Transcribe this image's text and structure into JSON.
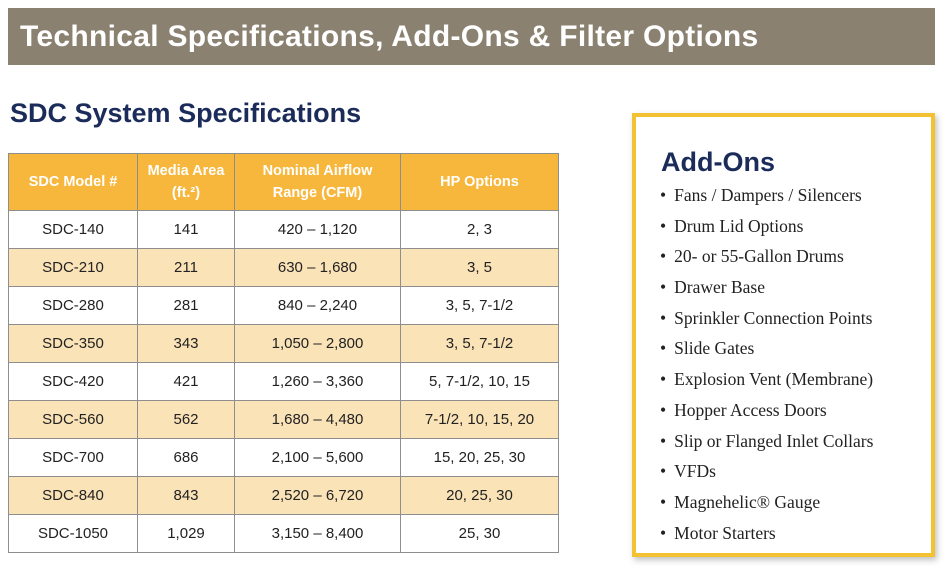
{
  "header": {
    "title": "Technical Specifications, Add-Ons & Filter Options"
  },
  "specs": {
    "title": "SDC System Specifications",
    "table": {
      "columns": [
        "SDC Model #",
        "Media Area (ft.²)",
        "Nominal Airflow Range (CFM)",
        "HP Options"
      ],
      "rows": [
        [
          "SDC-140",
          "141",
          "420 – 1,120",
          "2, 3"
        ],
        [
          "SDC-210",
          "211",
          "630 – 1,680",
          "3, 5"
        ],
        [
          "SDC-280",
          "281",
          "840 – 2,240",
          "3, 5, 7-1/2"
        ],
        [
          "SDC-350",
          "343",
          "1,050 – 2,800",
          "3, 5, 7-1/2"
        ],
        [
          "SDC-420",
          "421",
          "1,260 – 3,360",
          "5, 7-1/2, 10, 15"
        ],
        [
          "SDC-560",
          "562",
          "1,680 – 4,480",
          "7-1/2, 10, 15, 20"
        ],
        [
          "SDC-700",
          "686",
          "2,100 – 5,600",
          "15, 20, 25, 30"
        ],
        [
          "SDC-840",
          "843",
          "2,520 – 6,720",
          "20, 25, 30"
        ],
        [
          "SDC-1050",
          "1,029",
          "3,150 – 8,400",
          "25, 30"
        ]
      ]
    }
  },
  "addons": {
    "title": "Add-Ons",
    "items": [
      "Fans / Dampers / Silencers",
      "Drum Lid Options",
      "20- or 55-Gallon Drums",
      "Drawer Base",
      "Sprinkler Connection Points",
      "Slide Gates",
      "Explosion Vent (Membrane)",
      "Hopper Access Doors",
      "Slip or Flanged Inlet Collars",
      "VFDs",
      "Magnehelic® Gauge",
      "Motor Starters"
    ]
  }
}
